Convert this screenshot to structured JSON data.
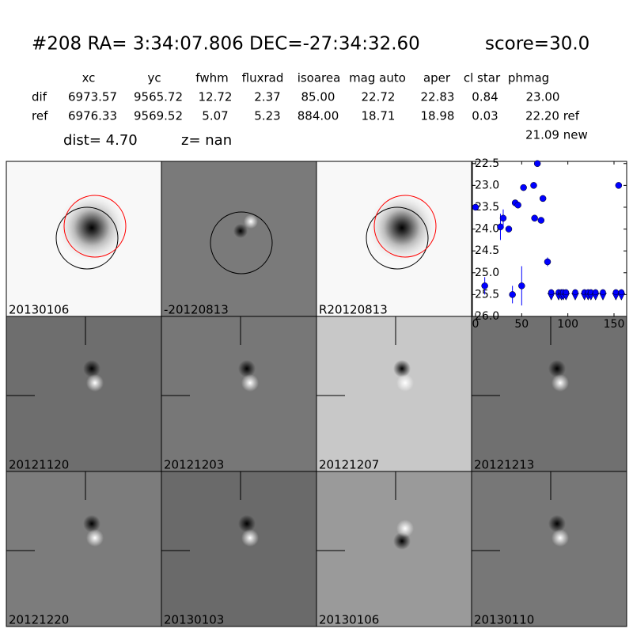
{
  "header": {
    "title": "#208   RA= 3:34:07.806 DEC=-27:34:32.60",
    "score": "score=30.0"
  },
  "table": {
    "columns": [
      "xc",
      "yc",
      "fwhm",
      "fluxrad",
      "isoarea",
      "mag auto",
      "aper",
      "cl star",
      "phmag"
    ],
    "rows": [
      [
        "dif",
        "6973.57",
        "9565.72",
        "12.72",
        "2.37",
        "85.00",
        "22.72",
        "22.83",
        "0.84",
        "23.00"
      ],
      [
        "ref",
        "6976.33",
        "9569.52",
        "5.07",
        "5.23",
        "884.00",
        "18.71",
        "18.98",
        "0.03",
        "22.20 ref"
      ]
    ],
    "extra": "21.09 new"
  },
  "dist": "dist=  4.70",
  "z": "z=   nan",
  "stamps": [
    {
      "label": "20130106",
      "color": "#000000"
    },
    {
      "label": "-20120813",
      "color": "#000000"
    },
    {
      "label": "R20120813",
      "color": "#000000"
    },
    {
      "label": "20121120",
      "color": "#000000"
    },
    {
      "label": "20121203",
      "color": "#000000"
    },
    {
      "label": "20121207",
      "color": "#000000"
    },
    {
      "label": "20121213",
      "color": "#000000"
    },
    {
      "label": "20121220",
      "color": "#000000"
    },
    {
      "label": "20130103",
      "color": "#000000"
    },
    {
      "label": "20130106",
      "color": "#ff0000"
    },
    {
      "label": "20130110",
      "color": "#000000"
    }
  ],
  "chart_data": {
    "type": "scatter",
    "inverted_y": true,
    "xlim": [
      -3.4,
      163.7
    ],
    "xticks": [
      0,
      50,
      100,
      150
    ],
    "ylim": [
      26.0,
      22.45
    ],
    "yticks": [
      {
        "value": 22.5,
        "label": "22.5"
      },
      {
        "value": 23,
        "label": "23.0"
      },
      {
        "value": 23.5,
        "label": "23.5"
      },
      {
        "value": 24,
        "label": "24.0"
      },
      {
        "value": 24.5,
        "label": "24.5"
      },
      {
        "value": 25,
        "label": "25.0"
      },
      {
        "value": 25.5,
        "label": "25.5"
      },
      {
        "value": 26,
        "label": "26.0"
      }
    ],
    "series": [
      {
        "name": "detections",
        "color": "#0000ff",
        "marker": "circle",
        "x": [
          0,
          10,
          27,
          30,
          36,
          40,
          43,
          46,
          50,
          52,
          63,
          64,
          67,
          71,
          73,
          78,
          155
        ],
        "values": [
          23.5,
          25.3,
          23.95,
          23.75,
          24.0,
          25.5,
          23.4,
          23.45,
          25.3,
          23.05,
          23.0,
          23.75,
          22.5,
          23.8,
          23.3,
          24.75,
          23.0
        ],
        "errors": [
          0.05,
          0.2,
          0.3,
          0.2,
          0.05,
          0.2,
          0.05,
          0.05,
          0.45,
          0.05,
          0.05,
          0.05,
          0.05,
          0.05,
          0.05,
          0.1,
          0.05
        ]
      },
      {
        "name": "upper limits",
        "color": "#0000ff",
        "marker": "triangle",
        "x": [
          82,
          90,
          93,
          95,
          98,
          108,
          118,
          122,
          125,
          130,
          138,
          152,
          158
        ],
        "values": [
          25.5,
          25.5,
          25.5,
          25.5,
          25.5,
          25.5,
          25.5,
          25.5,
          25.5,
          25.5,
          25.5,
          25.5,
          25.5
        ]
      }
    ]
  }
}
